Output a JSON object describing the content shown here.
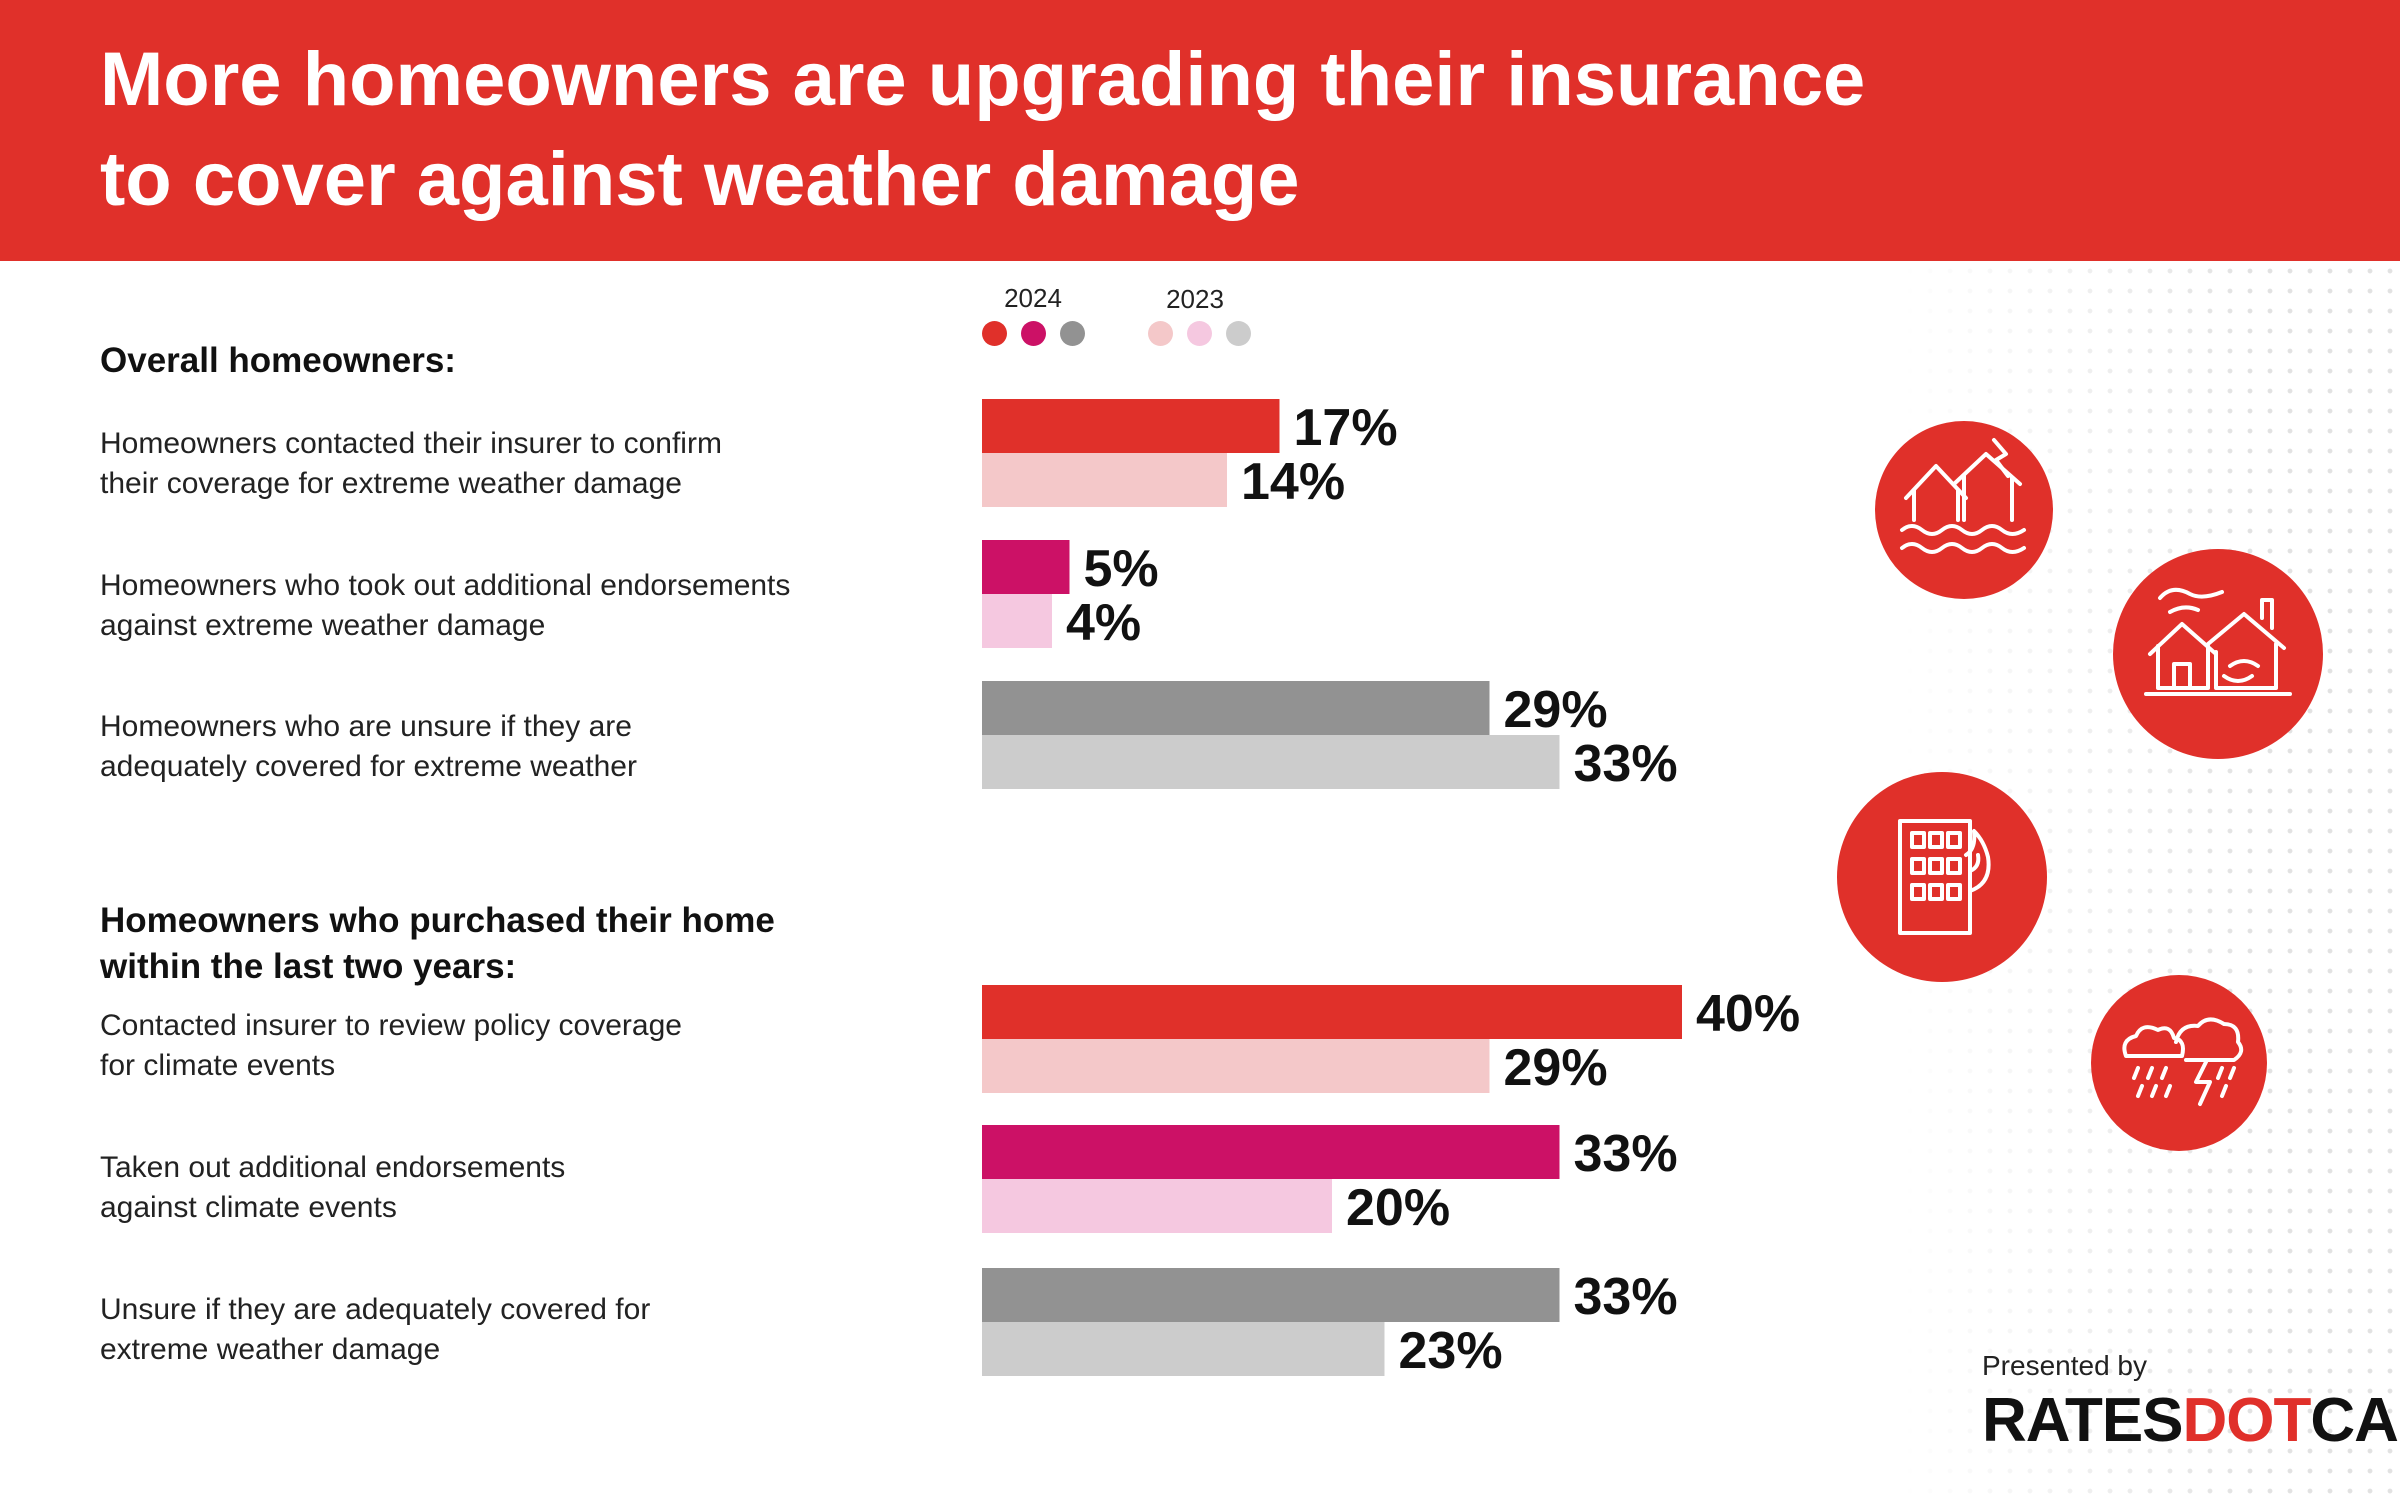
{
  "title": {
    "line1": "More homeowners are upgrading their insurance",
    "line2": "to cover against weather damage"
  },
  "legend": {
    "current_year": "2024",
    "previous_year": "2023"
  },
  "colors": {
    "header": "#e0302a",
    "red_2024": "#e0302a",
    "red_2023": "#f4c8c9",
    "magenta_2024": "#cc1166",
    "magenta_2023": "#f5c8e0",
    "gray_2024": "#929292",
    "gray_2023": "#cccccc"
  },
  "sections": [
    {
      "heading_lines": [
        "Overall homeowners:"
      ],
      "categories": [
        {
          "label_lines": [
            "Homeowners contacted their insurer to confirm",
            "their coverage for extreme weather damage"
          ]
        },
        {
          "label_lines": [
            "Homeowners who took out additional endorsements",
            "against extreme weather damage"
          ]
        },
        {
          "label_lines": [
            "Homeowners who are unsure if they are",
            "adequately covered for extreme weather"
          ]
        }
      ]
    },
    {
      "heading_lines": [
        "Homeowners who purchased their home",
        "within the last two years:"
      ],
      "categories": [
        {
          "label_lines": [
            "Contacted insurer to review policy coverage",
            "for climate events"
          ]
        },
        {
          "label_lines": [
            "Taken out additional endorsements",
            "against climate events"
          ]
        },
        {
          "label_lines": [
            "Unsure if they are adequately covered for",
            "extreme weather damage"
          ]
        }
      ]
    }
  ],
  "chart_data": {
    "type": "bar",
    "orientation": "horizontal",
    "unit": "%",
    "xlim": [
      0,
      40
    ],
    "grid": false,
    "legend_placement": "top",
    "categories": [
      "Homeowners contacted their insurer to confirm their coverage for extreme weather damage",
      "Homeowners who took out additional endorsements against extreme weather damage",
      "Homeowners who are unsure if they are adequately covered for extreme weather",
      "Contacted insurer to review policy coverage for climate events",
      "Taken out additional endorsements against climate events",
      "Unsure if they are adequately covered for extreme weather damage"
    ],
    "series": [
      {
        "name": "2024",
        "values": [
          17,
          5,
          29,
          40,
          33,
          33
        ],
        "labels": [
          "17%",
          "5%",
          "29%",
          "40%",
          "33%",
          "33%"
        ]
      },
      {
        "name": "2023",
        "values": [
          14,
          4,
          33,
          29,
          20,
          23
        ],
        "labels": [
          "14%",
          "4%",
          "33%",
          "29%",
          "20%",
          "23%"
        ]
      }
    ],
    "bar_colors_2024": [
      "#e0302a",
      "#cc1166",
      "#929292",
      "#e0302a",
      "#cc1166",
      "#929292"
    ],
    "bar_colors_2023": [
      "#f4c8c9",
      "#f5c8e0",
      "#cccccc",
      "#f4c8c9",
      "#f5c8e0",
      "#cccccc"
    ]
  },
  "icons": [
    "flooded-house-icon",
    "wind-house-icon",
    "burning-building-icon",
    "storm-cloud-icon"
  ],
  "footer": {
    "presented_by": "Presented by",
    "logo_part1": "RATES",
    "logo_part2": "DOT",
    "logo_part3": "CA"
  }
}
